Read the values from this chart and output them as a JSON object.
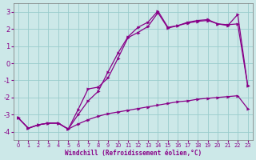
{
  "xlabel": "Windchill (Refroidissement éolien,°C)",
  "bg_color": "#cce8e8",
  "line_color": "#880088",
  "grid_color": "#99cccc",
  "xlim": [
    -0.5,
    23.5
  ],
  "ylim": [
    -4.5,
    3.5
  ],
  "yticks": [
    -4,
    -3,
    -2,
    -1,
    0,
    1,
    2,
    3
  ],
  "xticks": [
    0,
    1,
    2,
    3,
    4,
    5,
    6,
    7,
    8,
    9,
    10,
    11,
    12,
    13,
    14,
    15,
    16,
    17,
    18,
    19,
    20,
    21,
    22,
    23
  ],
  "line1_x": [
    0,
    1,
    2,
    3,
    4,
    5,
    6,
    7,
    8,
    9,
    10,
    11,
    12,
    13,
    14,
    15,
    16,
    17,
    18,
    19,
    20,
    21,
    22,
    23
  ],
  "line1_y": [
    -3.2,
    -3.8,
    -3.6,
    -3.5,
    -3.5,
    -3.85,
    -3.55,
    -3.3,
    -3.1,
    -2.95,
    -2.85,
    -2.75,
    -2.65,
    -2.55,
    -2.45,
    -2.35,
    -2.25,
    -2.2,
    -2.1,
    -2.05,
    -2.0,
    -1.95,
    -1.9,
    -2.65
  ],
  "line2_x": [
    0,
    1,
    2,
    3,
    4,
    5,
    6,
    7,
    8,
    9,
    10,
    11,
    12,
    13,
    14,
    15,
    16,
    17,
    18,
    19,
    20,
    21,
    22,
    23
  ],
  "line2_y": [
    -3.2,
    -3.8,
    -3.6,
    -3.5,
    -3.5,
    -3.85,
    -2.7,
    -1.5,
    -1.4,
    -0.85,
    0.3,
    1.5,
    1.8,
    2.15,
    2.95,
    2.05,
    2.2,
    2.35,
    2.45,
    2.5,
    2.3,
    2.2,
    2.85,
    -1.3
  ],
  "line3_x": [
    0,
    1,
    2,
    3,
    4,
    5,
    6,
    7,
    8,
    9,
    10,
    11,
    12,
    13,
    14,
    15,
    16,
    17,
    18,
    19,
    20,
    21,
    22,
    23
  ],
  "line3_y": [
    -3.2,
    -3.8,
    -3.6,
    -3.5,
    -3.5,
    -3.85,
    -3.0,
    -2.2,
    -1.65,
    -0.5,
    0.6,
    1.55,
    2.1,
    2.4,
    3.05,
    2.1,
    2.2,
    2.4,
    2.5,
    2.55,
    2.3,
    2.25,
    2.3,
    -1.3
  ],
  "markersize": 2.5
}
